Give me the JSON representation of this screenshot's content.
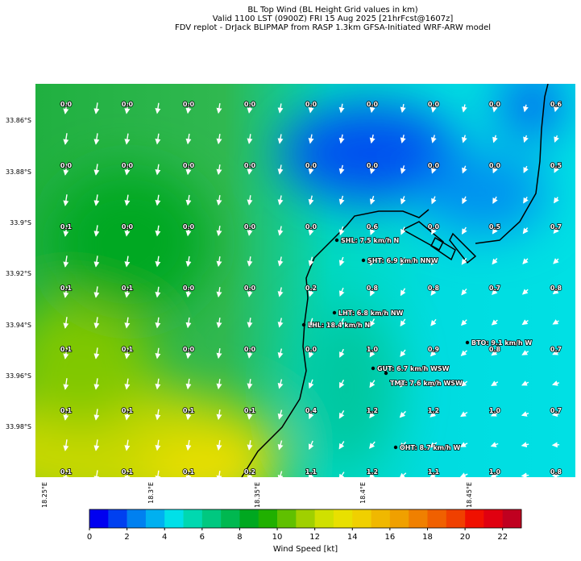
{
  "header": {
    "title_lines": [
      "BL Top Wind (BL Height Grid values in km)",
      "Valid 1100 LST (0900Z) FRI 15 Aug 2025 [21hrFcst@1607z]",
      "FDV replot - DrJack BLIPMAP from RASP 1.3km GFSA-Initiated WRF-ARW model"
    ]
  },
  "map": {
    "lat_labels": [
      "33.86°S",
      "33.88°S",
      "33.9°S",
      "33.92°S",
      "33.94°S",
      "33.96°S",
      "33.98°S"
    ],
    "lon_labels": [
      "18.25°E",
      "18.3°E",
      "18.35°E",
      "18.4°E",
      "18.45°E"
    ],
    "grid_values": [
      [
        "0.0",
        "0.0",
        "0.0",
        "0.0",
        "0.0",
        "0.0",
        "0.0",
        "0.0",
        "0.6"
      ],
      [
        "0.0",
        "0.0",
        "0.0",
        "0.0",
        "0.0",
        "0.0",
        "0.0",
        "0.0",
        "0.5"
      ],
      [
        "0.1",
        "0.0",
        "0.0",
        "0.0",
        "0.0",
        "0.6",
        "0.0",
        "0.5",
        "0.7"
      ],
      [
        "0.1",
        "0.1",
        "0.0",
        "0.0",
        "0.2",
        "0.8",
        "0.8",
        "0.7",
        "0.8"
      ],
      [
        "0.1",
        "0.1",
        "0.0",
        "0.0",
        "0.0",
        "1.0",
        "0.9",
        "0.8",
        "0.7"
      ],
      [
        "0.1",
        "0.1",
        "0.1",
        "0.1",
        "0.4",
        "1.2",
        "1.2",
        "1.0",
        "0.7"
      ],
      [
        "0.1",
        "0.1",
        "0.1",
        "0.2",
        "1.1",
        "1.2",
        "1.1",
        "1.0",
        "0.8"
      ]
    ],
    "stations": [
      "SHL: 7.5 km/h N",
      "SHT: 6.9 km/h NNW",
      "LHT: 6.8 km/h NW",
      "LHL: 18.4 km/h N",
      "BTO: 9.1 km/h W",
      "GUT: 6.7 km/h WSW",
      "TMT: 7.6 km/h WSW",
      "OHT: 8.7 km/h W"
    ]
  },
  "colorbar": {
    "label": "Wind Speed [kt]",
    "range": [
      0,
      23
    ],
    "ticks": [
      0,
      2,
      4,
      6,
      8,
      10,
      12,
      14,
      16,
      18,
      20,
      22
    ],
    "colors": [
      "#0000f0",
      "#0040f0",
      "#0080f0",
      "#00b0f0",
      "#00e0e8",
      "#00d8b0",
      "#00c880",
      "#00b850",
      "#00a820",
      "#20b000",
      "#60c000",
      "#a0d000",
      "#d0e000",
      "#e8e000",
      "#f0d000",
      "#f0b800",
      "#f0a000",
      "#f08000",
      "#f06000",
      "#f04000",
      "#f01000",
      "#e00010",
      "#c00020"
    ]
  }
}
